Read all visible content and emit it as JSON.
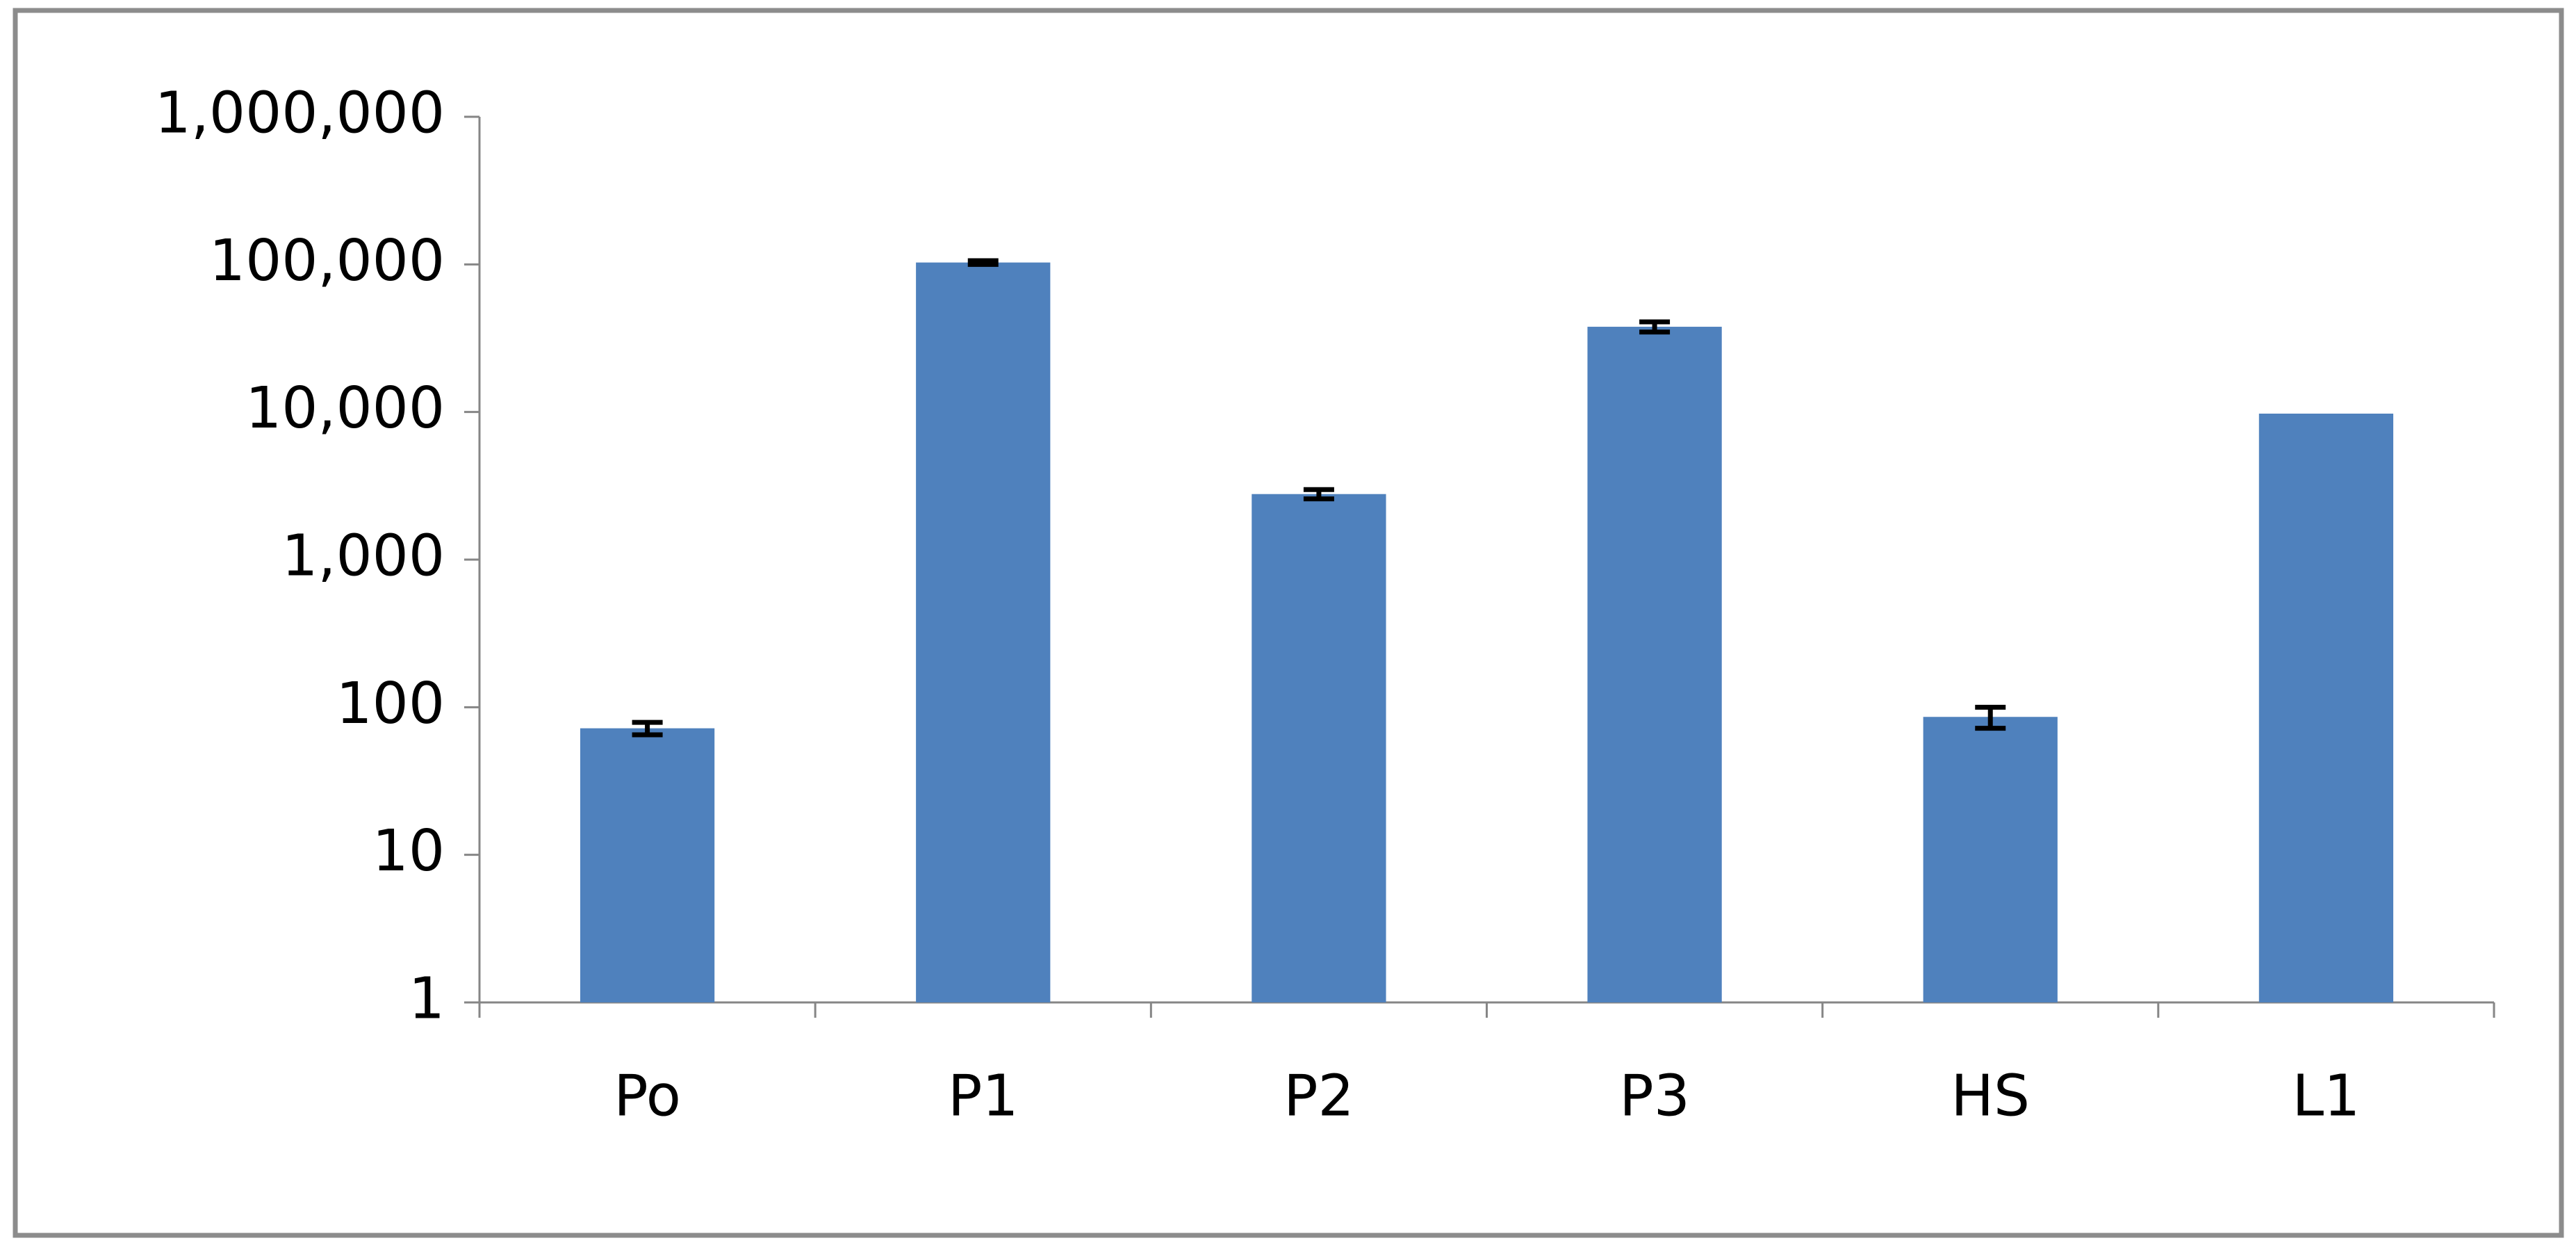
{
  "chart_data": {
    "type": "bar",
    "categories": [
      "Po",
      "P1",
      "P2",
      "P3",
      "HS",
      "L1"
    ],
    "series": [
      {
        "color": "#4f81bd",
        "values": [
          72,
          103000,
          2780,
          37800,
          86,
          9750
        ],
        "errors": [
          7,
          3000,
          200,
          3000,
          14,
          null
        ]
      }
    ],
    "yscale": "log",
    "ylim": [
      1,
      1000000
    ],
    "yticks": [
      1,
      10,
      100,
      {
        "value": 1000,
        "label": "1,000"
      },
      {
        "value": 10000,
        "label": "10,000"
      },
      {
        "value": 100000,
        "label": "100,000"
      },
      {
        "value": 1000000,
        "label": "1,000,000"
      }
    ],
    "grid": false
  }
}
